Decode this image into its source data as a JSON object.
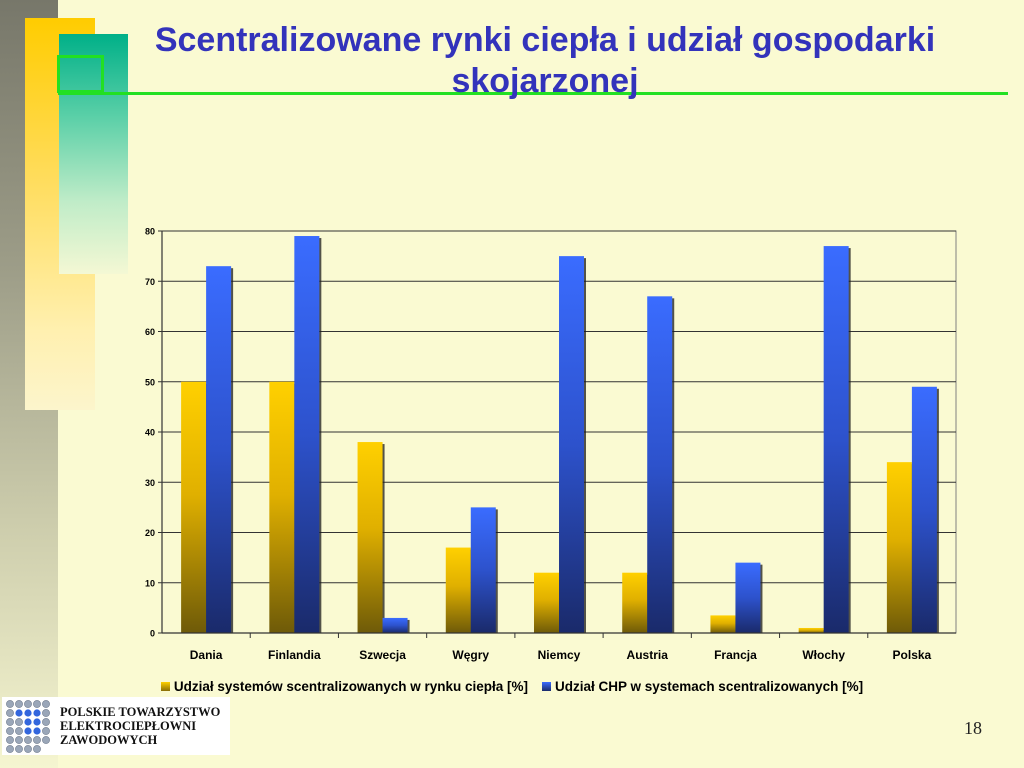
{
  "slide": {
    "title": "Scentralizowane rynki ciepła i udział gospodarki skojarzonej",
    "page_number": "18"
  },
  "logo": {
    "lines": [
      "POLSKIE TOWARZYSTWO",
      "ELEKTROCIEPŁOWNI",
      "ZAWODOWYCH"
    ],
    "icon": "dot-grid-logo"
  },
  "colors": {
    "title": "#3333bb",
    "series_1": "#f5c400",
    "series_2": "#3366ee",
    "accent_line": "#22e022"
  },
  "chart_data": {
    "type": "bar",
    "categories": [
      "Dania",
      "Finlandia",
      "Szwecja",
      "Węgry",
      "Niemcy",
      "Austria",
      "Francja",
      "Włochy",
      "Polska"
    ],
    "series": [
      {
        "name": "Udział systemów scentralizowanych w rynku ciepła [%]",
        "values": [
          50,
          50,
          38,
          17,
          12,
          12,
          3.5,
          1,
          34
        ]
      },
      {
        "name": "Udział CHP w systemach scentralizowanych [%]",
        "values": [
          73,
          79,
          3,
          25,
          75,
          67,
          14,
          77,
          49
        ]
      }
    ],
    "ylim": [
      0,
      80
    ],
    "yticks": [
      0,
      10,
      20,
      30,
      40,
      50,
      60,
      70,
      80
    ],
    "grid": true,
    "legend_position": "bottom",
    "title": "",
    "xlabel": "",
    "ylabel": ""
  }
}
